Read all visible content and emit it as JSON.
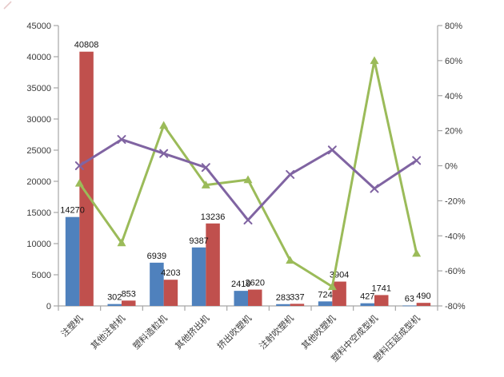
{
  "colors": {
    "bar_blue": "#4F81BD",
    "bar_red": "#C0504D",
    "line_green": "#9BBB59",
    "line_purple": "#8064A2",
    "axis_line": "#a6a6a6",
    "axis_text": "#3b3b3b",
    "data_label_text": "#141414",
    "corner_mark": "#ddb4b4",
    "background": "#ffffff"
  },
  "chart_data": {
    "type": "bar",
    "subtype": "combo-dual-axis-bar-line",
    "title": "",
    "legend": "none",
    "grid": false,
    "categories": [
      "注塑机",
      "其他注射机",
      "塑料造粒机",
      "其他挤出机",
      "挤出吹塑机",
      "注射吹塑机",
      "其他吹塑机",
      "塑料中空成型机",
      "塑料压延成型机"
    ],
    "bar_series": [
      {
        "name": "blue-bars",
        "color": "#4F81BD",
        "axis": "left",
        "values": [
          14270,
          302,
          6939,
          9387,
          2419,
          283,
          724,
          427,
          63
        ],
        "data_labels": [
          "14270",
          "302",
          "6939",
          "9387",
          "2419",
          "283",
          "724",
          "427",
          "63"
        ]
      },
      {
        "name": "red-bars",
        "color": "#C0504D",
        "axis": "left",
        "values": [
          40808,
          853,
          4203,
          13236,
          2620,
          337,
          3904,
          1741,
          490
        ],
        "data_labels": [
          "40808",
          "853",
          "4203",
          "13236",
          "2620",
          "337",
          "3904",
          "1741",
          "490"
        ]
      }
    ],
    "line_series": [
      {
        "name": "green-line",
        "color": "#9BBB59",
        "marker": "triangle",
        "axis": "right",
        "values_percent": [
          -10,
          -44,
          23,
          -11,
          -8,
          -54,
          -69,
          60,
          -50
        ]
      },
      {
        "name": "purple-line",
        "color": "#8064A2",
        "marker": "x",
        "axis": "right",
        "values_percent": [
          0,
          15,
          7,
          -1,
          -31,
          -5,
          9,
          -13,
          3
        ]
      }
    ],
    "left_axis": {
      "min": 0,
      "max": 45000,
      "step": 5000,
      "tick_labels": [
        "0",
        "5000",
        "10000",
        "15000",
        "20000",
        "25000",
        "30000",
        "35000",
        "40000",
        "45000"
      ]
    },
    "right_axis": {
      "min": -80,
      "max": 80,
      "step": 20,
      "tick_labels": [
        "-80%",
        "-60%",
        "-40%",
        "-20%",
        "0%",
        "20%",
        "40%",
        "60%",
        "80%"
      ]
    }
  }
}
